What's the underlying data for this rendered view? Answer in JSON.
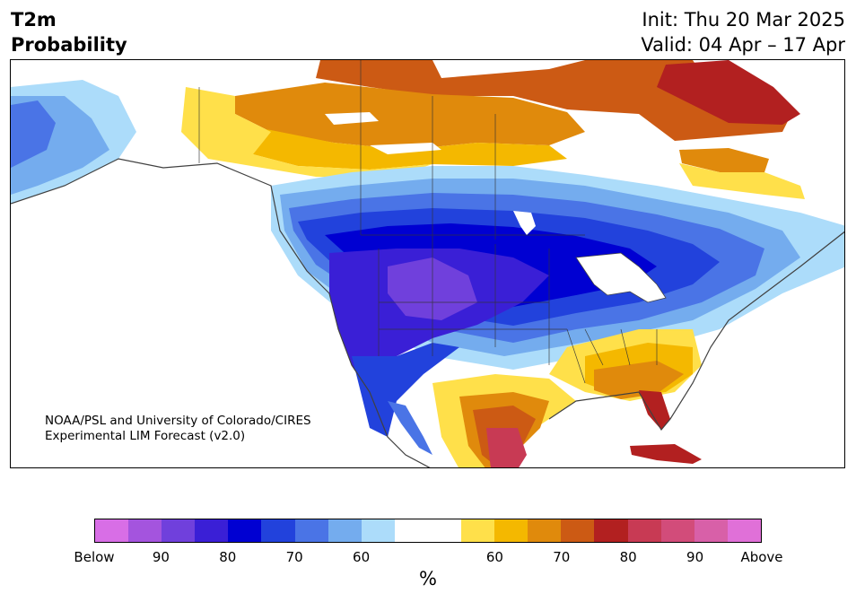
{
  "title": {
    "line1": "T2m",
    "line2": "Probability"
  },
  "forecast": {
    "init": "Init: Thu 20 Mar 2025",
    "valid": "Valid: 04 Apr – 17 Apr"
  },
  "credit": {
    "line1": "NOAA/PSL and University of Colorado/CIRES",
    "line2": "Experimental LIM Forecast (v2.0)"
  },
  "colorbar": {
    "colors": [
      "#d86ee6",
      "#a454de",
      "#7040dc",
      "#3a1fd6",
      "#0000d2",
      "#2242dc",
      "#4a74e6",
      "#74acee",
      "#acdcfa",
      "#ffffff",
      "#ffffff",
      "#ffe04a",
      "#f4b800",
      "#e08a0c",
      "#cc5a14",
      "#b22020",
      "#c83a54",
      "#d24c7a",
      "#d860a8",
      "#e070d8"
    ],
    "labels": [
      "Below",
      "90",
      "80",
      "70",
      "60",
      "60",
      "70",
      "80",
      "90",
      "Above"
    ],
    "unit": "%"
  },
  "icons": [
    "coastline-icon",
    "state-border-icon"
  ]
}
